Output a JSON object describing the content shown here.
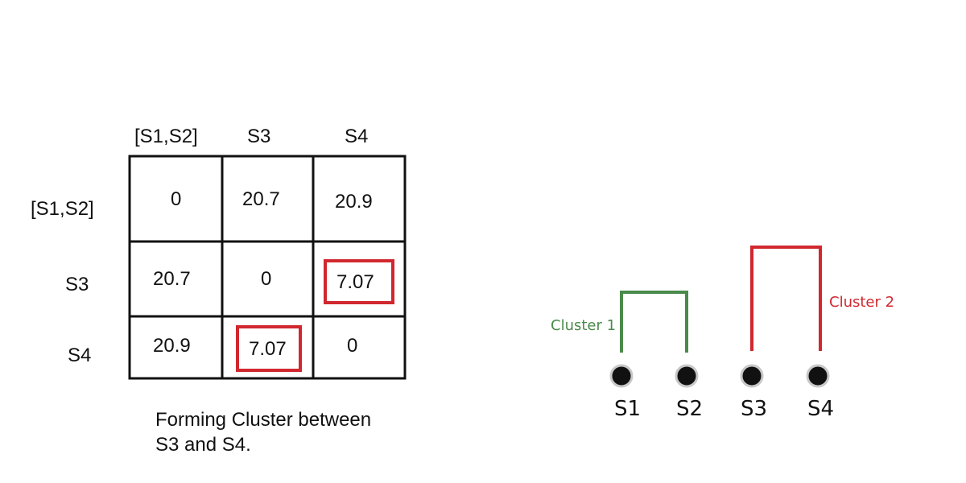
{
  "matrix": {
    "column_headers": [
      "[S1,S2]",
      "S3",
      "S4"
    ],
    "row_headers": [
      "[S1,S2]",
      "S3",
      "S4"
    ],
    "rows": [
      [
        "0",
        "20.7",
        "20.9"
      ],
      [
        "20.7",
        "0",
        "7.07"
      ],
      [
        "20.9",
        "7.07",
        "0"
      ]
    ],
    "highlighted_cells": [
      [
        1,
        2
      ],
      [
        2,
        1
      ]
    ],
    "highlight_color": "#d0282e"
  },
  "caption": {
    "line1": "Forming Cluster between",
    "line2": "S3 and S4."
  },
  "dendrogram": {
    "nodes": [
      "S1",
      "S2",
      "S3",
      "S4"
    ],
    "clusters": [
      {
        "label": "Cluster 1",
        "members": [
          "S1",
          "S2"
        ],
        "color": "#4a8a4a"
      },
      {
        "label": "Cluster 2",
        "members": [
          "S3",
          "S4"
        ],
        "color": "#d0282e"
      }
    ]
  }
}
